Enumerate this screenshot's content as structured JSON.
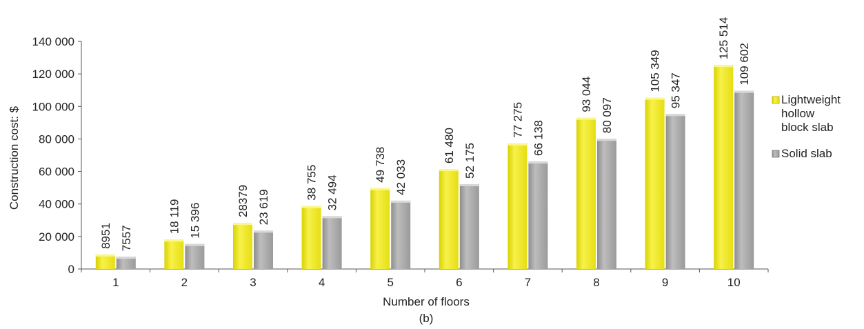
{
  "chart_data": {
    "type": "bar",
    "xlabel": "Number of floors",
    "ylabel": "Construction cost: $",
    "caption": "(b)",
    "categories": [
      "1",
      "2",
      "3",
      "4",
      "5",
      "6",
      "7",
      "8",
      "9",
      "10"
    ],
    "ylim": [
      0,
      140000
    ],
    "yticks": [
      0,
      20000,
      40000,
      60000,
      80000,
      100000,
      120000,
      140000
    ],
    "ytick_labels": [
      "0",
      "20 000",
      "40 000",
      "60 000",
      "80 000",
      "100 000",
      "120 000",
      "140 000"
    ],
    "grid": false,
    "legend_position": "right",
    "series": [
      {
        "name": "Lightweight hollow block slab",
        "legend_lines": [
          "Lightweight",
          "hollow",
          "block slab"
        ],
        "color": "#f0e81c",
        "values": [
          8951,
          18119,
          28379,
          38755,
          49738,
          61480,
          77275,
          93044,
          105349,
          125514
        ],
        "labels": [
          "8951",
          "18 119",
          "28379",
          "38 755",
          "49 738",
          "61 480",
          "77 275",
          "93 044",
          "105 349",
          "125 514"
        ]
      },
      {
        "name": "Solid slab",
        "legend_lines": [
          "Solid slab"
        ],
        "color": "#a8a8a8",
        "values": [
          7557,
          15396,
          23619,
          32494,
          42033,
          52175,
          66138,
          80097,
          95347,
          109602
        ],
        "labels": [
          "7557",
          "15 396",
          "23 619",
          "32 494",
          "42 033",
          "52 175",
          "66 138",
          "80 097",
          "95 347",
          "109 602"
        ]
      }
    ]
  }
}
